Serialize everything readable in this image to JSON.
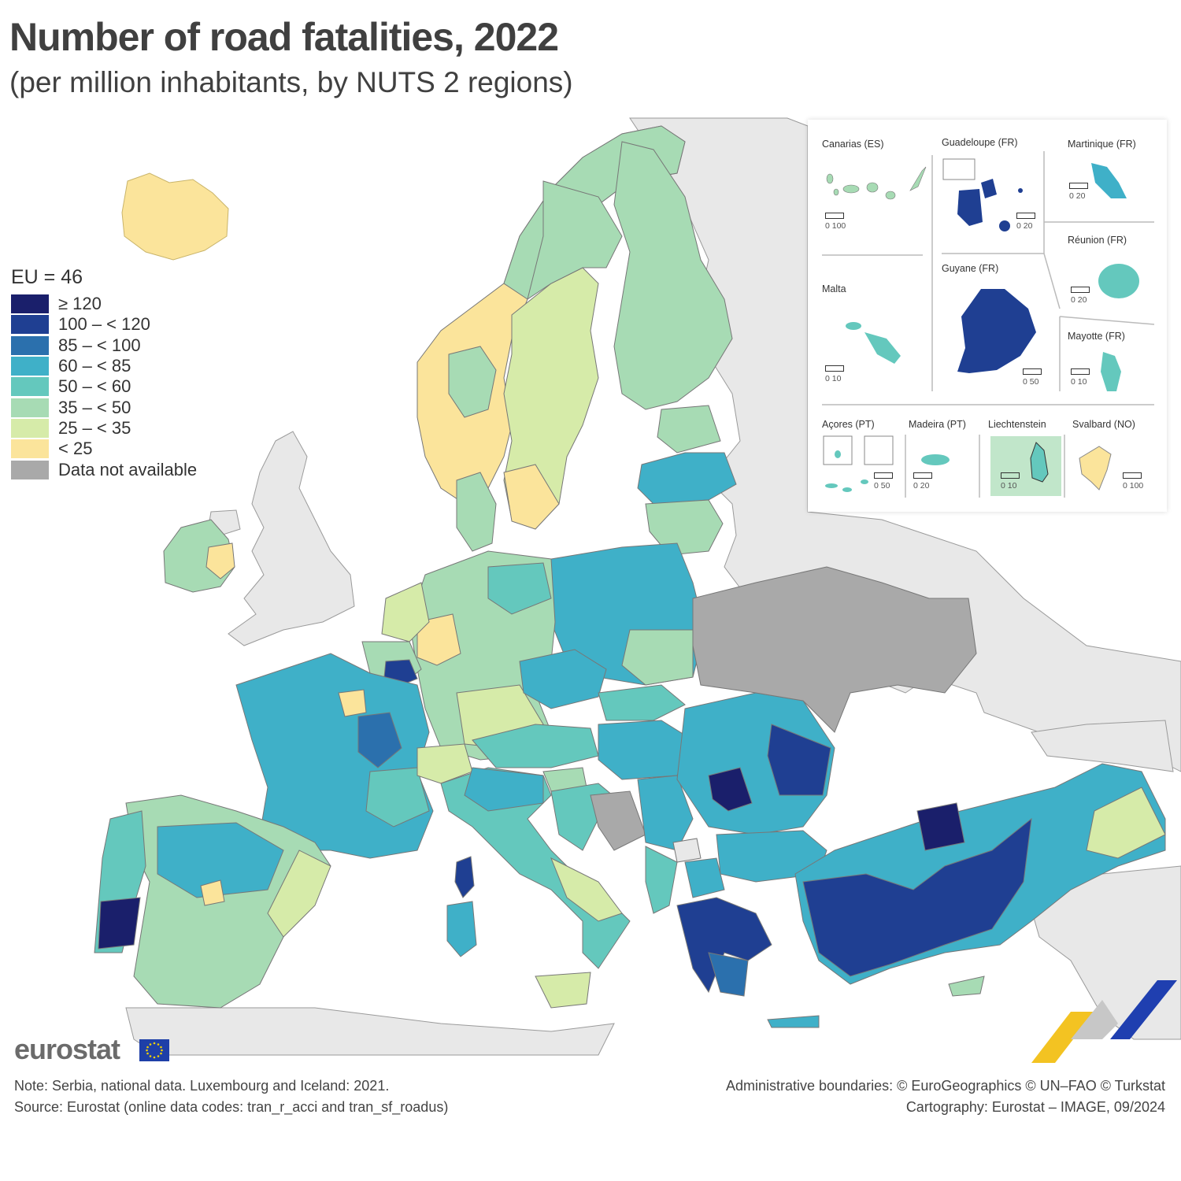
{
  "header": {
    "title": "Number of road fatalities, 2022",
    "subtitle": "(per million inhabitants, by NUTS 2 regions)"
  },
  "legend": {
    "eu_average": "EU = 46",
    "classes": [
      {
        "label": "≥ 120",
        "color": "#1a1f6b"
      },
      {
        "label": "100 – < 120",
        "color": "#1f3f92"
      },
      {
        "label": "85 – < 100",
        "color": "#2b70ad"
      },
      {
        "label": "60 – < 85",
        "color": "#3fb0c8"
      },
      {
        "label": "50 – < 60",
        "color": "#64c8bd"
      },
      {
        "label": "35 – < 50",
        "color": "#a7dbb4"
      },
      {
        "label": "25 – < 35",
        "color": "#d6eba9"
      },
      {
        "label": "< 25",
        "color": "#fbe49b"
      },
      {
        "label": "Data not available",
        "color": "#a9a9a9"
      }
    ]
  },
  "insets": {
    "canarias": {
      "label": "Canarias (ES)",
      "scale": "0   100"
    },
    "guadeloupe": {
      "label": "Guadeloupe (FR)",
      "scale": "0   20"
    },
    "martinique": {
      "label": "Martinique (FR)",
      "scale": "0   20"
    },
    "reunion": {
      "label": "Réunion (FR)",
      "scale": "0   20"
    },
    "guyane": {
      "label": "Guyane (FR)",
      "scale": "0 50"
    },
    "malta": {
      "label": "Malta",
      "scale": "0   10"
    },
    "mayotte": {
      "label": "Mayotte (FR)",
      "scale": "0  10"
    },
    "acores": {
      "label": "Açores (PT)",
      "scale": "0   50"
    },
    "madeira": {
      "label": "Madeira (PT)",
      "scale": "0  20"
    },
    "liechtenstein": {
      "label": "Liechtenstein",
      "scale": "0   10"
    },
    "svalbard": {
      "label": "Svalbard (NO)",
      "scale": "0 100"
    }
  },
  "footer": {
    "brand": "eurostat",
    "note": "Note: Serbia, national data. Luxembourg and Iceland: 2021.",
    "source": "Source: Eurostat (online data codes: tran_r_acci and tran_sf_roadus)",
    "boundaries": "Administrative boundaries: © EuroGeographics © UN–FAO © Turkstat",
    "cartography": "Cartography: Eurostat – IMAGE, 09/2024"
  },
  "colors": {
    "sea": "#ffffff",
    "non_eu_land": "#e8e8e8",
    "no_data": "#a9a9a9"
  }
}
